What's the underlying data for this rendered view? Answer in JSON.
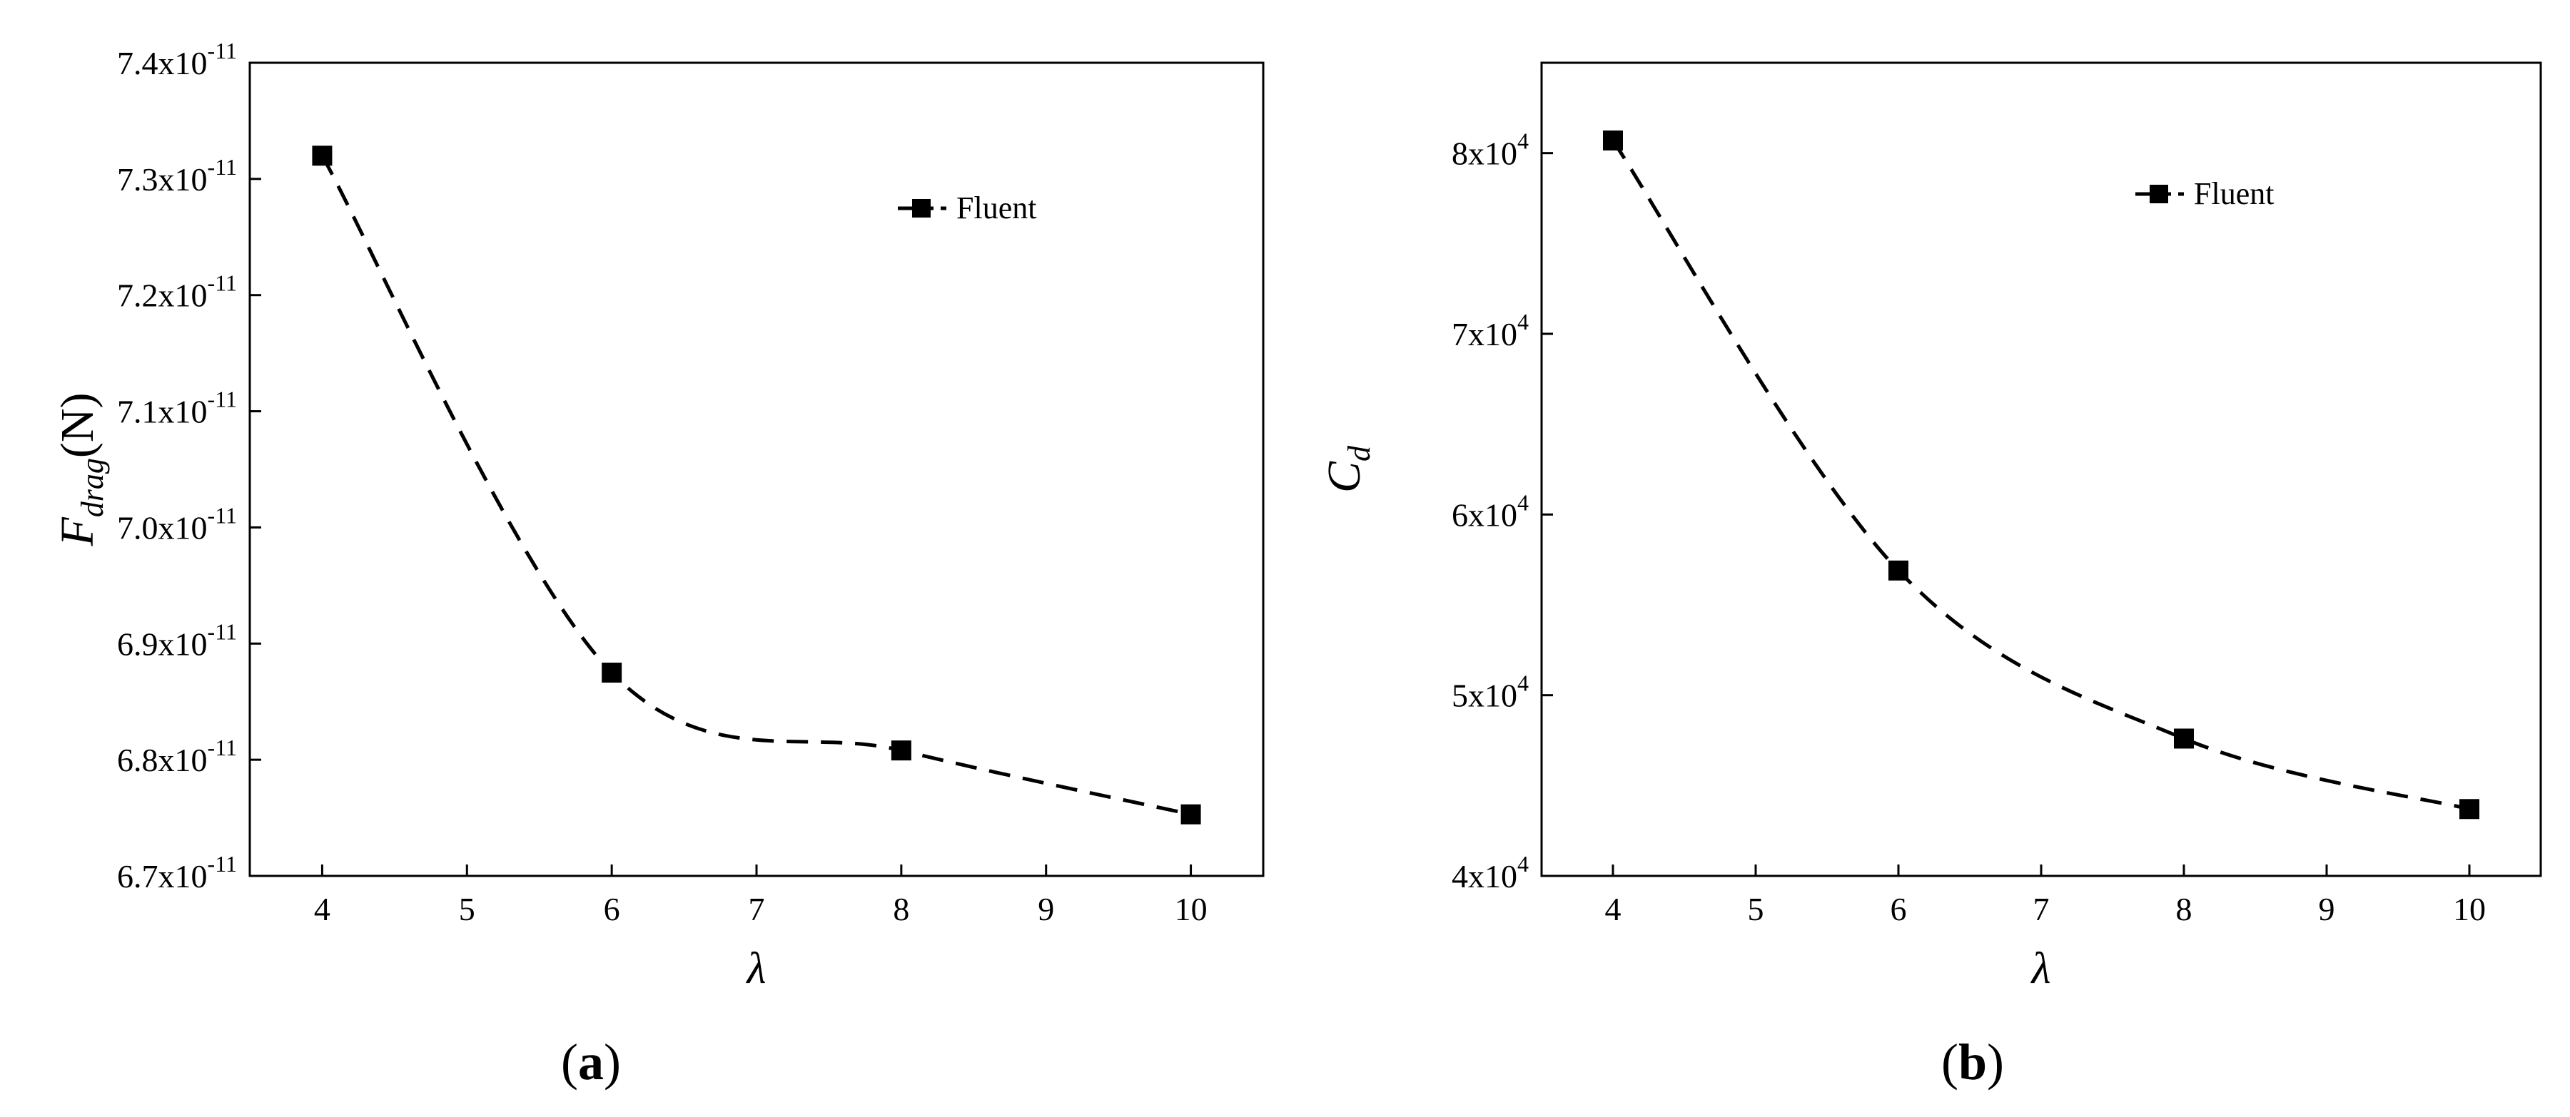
{
  "charts": {
    "a": {
      "caption_open": "(",
      "caption_letter": "a",
      "caption_close": ")"
    },
    "b": {
      "caption_open": "(",
      "caption_letter": "b",
      "caption_close": ")"
    }
  },
  "chart_data": [
    {
      "type": "line",
      "x": [
        4,
        6,
        8,
        10
      ],
      "xticks": [
        "4",
        "5",
        "6",
        "7",
        "8",
        "9",
        "10"
      ],
      "xlim": [
        3.5,
        10.5
      ],
      "xlabel": "λ",
      "ylabel": "F",
      "ylabel_sub": "drag",
      "ylabel_unit": "(N)",
      "ylim": [
        6.7e-11,
        7.4e-11
      ],
      "yticks": [
        {
          "mant": "6.7x10",
          "exp": "-11",
          "value": 6.7e-11
        },
        {
          "mant": "6.8x10",
          "exp": "-11",
          "value": 6.8e-11
        },
        {
          "mant": "6.9x10",
          "exp": "-11",
          "value": 6.9e-11
        },
        {
          "mant": "7.0x10",
          "exp": "-11",
          "value": 7e-11
        },
        {
          "mant": "7.1x10",
          "exp": "-11",
          "value": 7.1e-11
        },
        {
          "mant": "7.2x10",
          "exp": "-11",
          "value": 7.2e-11
        },
        {
          "mant": "7.3x10",
          "exp": "-11",
          "value": 7.3e-11
        },
        {
          "mant": "7.4x10",
          "exp": "-11",
          "value": 7.4e-11
        }
      ],
      "series": [
        {
          "name": "Fluent",
          "values": [
            7.32e-11,
            6.875e-11,
            6.808e-11,
            6.753e-11
          ],
          "color": "#000000",
          "line": "dashed",
          "marker": "square"
        }
      ],
      "legend": "top-right",
      "grid": false
    },
    {
      "type": "line",
      "x": [
        4,
        6,
        8,
        10
      ],
      "xticks": [
        "4",
        "5",
        "6",
        "7",
        "8",
        "9",
        "10"
      ],
      "xlim": [
        3.5,
        10.5
      ],
      "xlabel": "λ",
      "ylabel": "C",
      "ylabel_sub": "d",
      "ylabel_unit": "",
      "ylim": [
        40000,
        85000
      ],
      "yticks": [
        {
          "mant": "4x10",
          "exp": "4",
          "value": 40000
        },
        {
          "mant": "5x10",
          "exp": "4",
          "value": 50000
        },
        {
          "mant": "6x10",
          "exp": "4",
          "value": 60000
        },
        {
          "mant": "7x10",
          "exp": "4",
          "value": 70000
        },
        {
          "mant": "8x10",
          "exp": "4",
          "value": 80000
        }
      ],
      "series": [
        {
          "name": "Fluent",
          "values": [
            80700,
            56900,
            47600,
            43700
          ],
          "color": "#000000",
          "line": "dashed",
          "marker": "square"
        }
      ],
      "legend": "top-right",
      "grid": false
    }
  ]
}
